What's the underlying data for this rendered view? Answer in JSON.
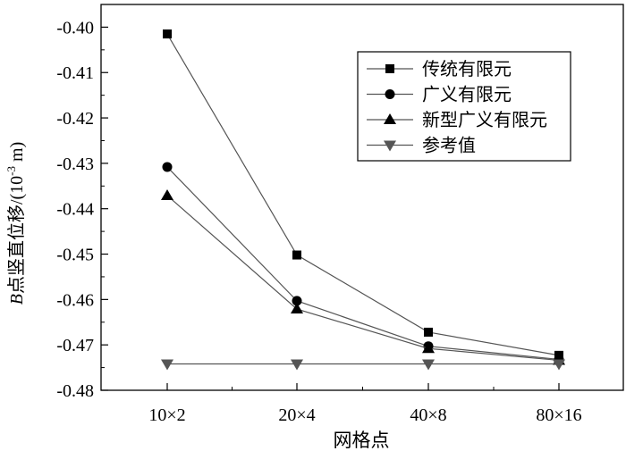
{
  "chart_data": {
    "type": "line",
    "xlabel": "网格点",
    "ylabel_italic": "B",
    "ylabel_main": "点竖直位移/(10",
    "ylabel_sup": "-3",
    "ylabel_tail": " m)",
    "categories": [
      "10×2",
      "20×4",
      "40×8",
      "80×16"
    ],
    "ylim": [
      -0.48,
      -0.395
    ],
    "yticks": [
      -0.4,
      -0.41,
      -0.42,
      -0.43,
      -0.44,
      -0.45,
      -0.46,
      -0.47,
      -0.48
    ],
    "ytick_labels": [
      "-0.40",
      "-0.41",
      "-0.42",
      "-0.43",
      "-0.44",
      "-0.45",
      "-0.46",
      "-0.47",
      "-0.48"
    ],
    "legend_position": "top-right",
    "series": [
      {
        "name": "传统有限元",
        "marker": "square",
        "values": [
          -0.4015,
          -0.4502,
          -0.4672,
          -0.4723
        ]
      },
      {
        "name": "广义有限元",
        "marker": "circle",
        "values": [
          -0.4308,
          -0.4603,
          -0.4703,
          -0.4732
        ]
      },
      {
        "name": "新型广义有限元",
        "marker": "triangle-up",
        "values": [
          -0.4371,
          -0.4621,
          -0.4708,
          -0.4734
        ]
      },
      {
        "name": "参考值",
        "marker": "triangle-down",
        "values": [
          -0.4742,
          -0.4742,
          -0.4742,
          -0.4742
        ]
      }
    ],
    "line_color": "#555555",
    "marker_color": "#000000",
    "reference_marker_color": "#555555"
  }
}
